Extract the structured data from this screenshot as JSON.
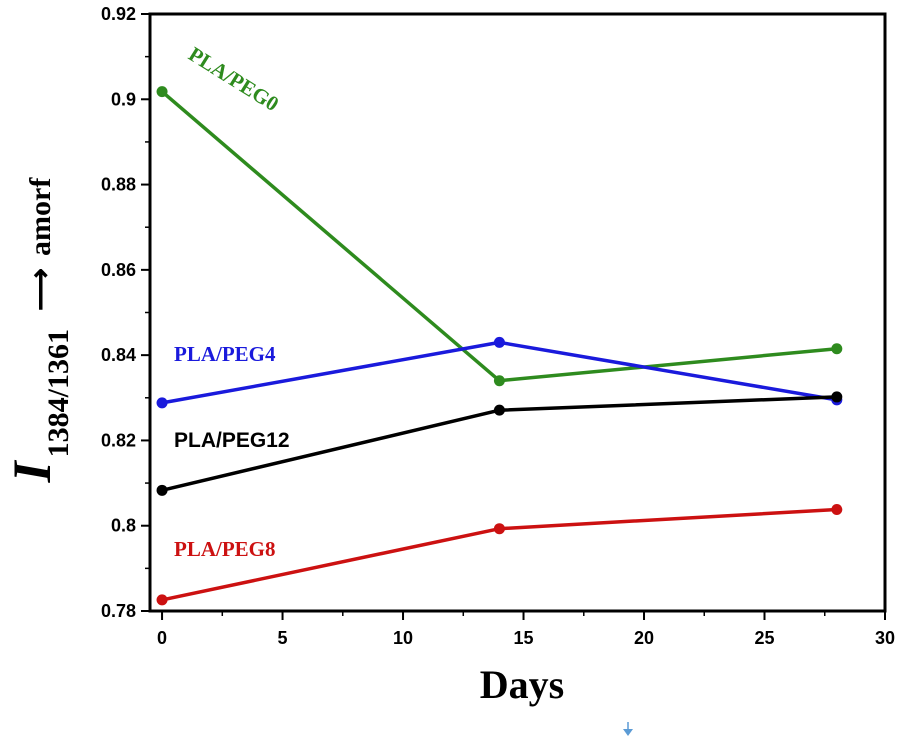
{
  "chart_data": {
    "type": "line",
    "xlabel": "Days",
    "ylabel": {
      "main": "I",
      "subscript": "1384/1361",
      "arrow": "⟶",
      "suffix": "amorf"
    },
    "xlim": [
      -0.5,
      30
    ],
    "ylim": [
      0.78,
      0.92
    ],
    "xticks": [
      0,
      5,
      10,
      15,
      20,
      25,
      30
    ],
    "yticks": [
      0.78,
      0.8,
      0.82,
      0.84,
      0.86,
      0.88,
      0.9,
      0.92
    ],
    "ytick_labels": [
      "0.78",
      "0.8",
      "0.82",
      "0.84",
      "0.86",
      "0.88",
      "0.9",
      "0.92"
    ],
    "xtick_labels": [
      "0",
      "5",
      "10",
      "15",
      "20",
      "25",
      "30"
    ],
    "series": [
      {
        "name": "PLA/PEG0",
        "color": "#2e8b1e",
        "x": [
          0,
          14,
          28
        ],
        "y": [
          0.9018,
          0.834,
          0.8415
        ]
      },
      {
        "name": "PLA/PEG4",
        "color": "#1a1adc",
        "x": [
          0,
          14,
          28
        ],
        "y": [
          0.8288,
          0.843,
          0.8295
        ]
      },
      {
        "name": "PLA/PEG12",
        "color": "#000000",
        "x": [
          0,
          14,
          28
        ],
        "y": [
          0.8083,
          0.8271,
          0.8302
        ]
      },
      {
        "name": "PLA/PEG8",
        "color": "#cc1111",
        "x": [
          0,
          14,
          28
        ],
        "y": [
          0.7826,
          0.7993,
          0.8038
        ]
      }
    ]
  },
  "footer": {
    "arrow_icon_color": "#5b9bd5"
  }
}
